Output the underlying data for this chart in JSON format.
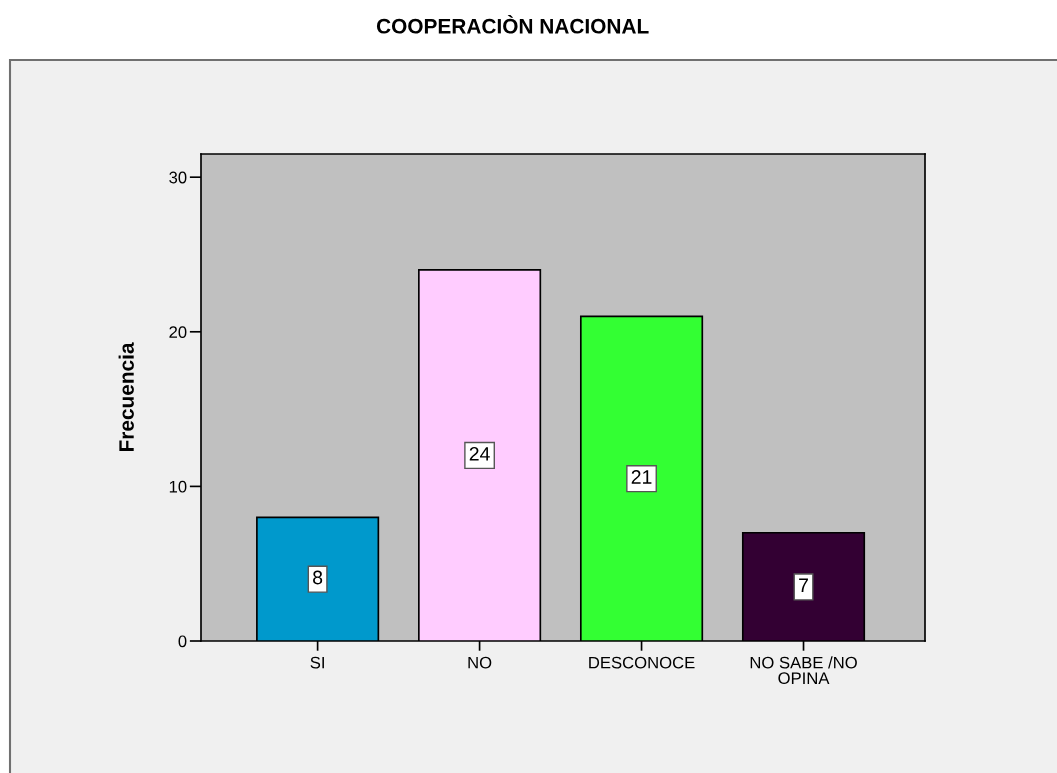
{
  "chart_data": {
    "type": "bar",
    "title": "COOPERACIÒN NACIONAL",
    "ylabel": "Frecuencia",
    "categories": [
      "SI",
      "NO",
      "DESCONOCE",
      "NO SABE /NO OPINA"
    ],
    "values": [
      8,
      24,
      21,
      7
    ],
    "colors": [
      "#0099cc",
      "#ffccff",
      "#33ff33",
      "#330033"
    ],
    "ylim": [
      0,
      31.5
    ],
    "yticks": [
      0,
      10,
      20,
      30
    ],
    "grid": false,
    "data_labels": true
  }
}
